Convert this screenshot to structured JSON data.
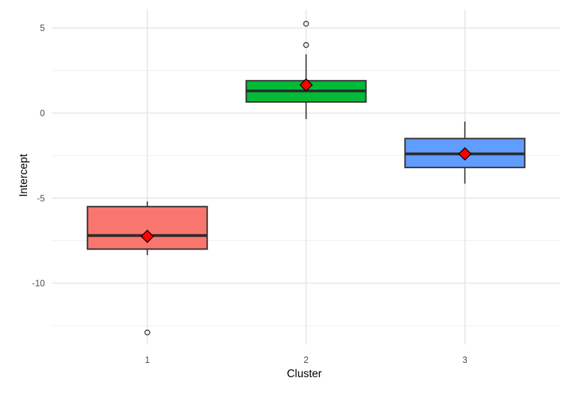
{
  "chart_data": {
    "type": "boxplot",
    "title": "",
    "xlabel": "Cluster",
    "ylabel": "Intercept",
    "categories": [
      "1",
      "2",
      "3"
    ],
    "ylim": [
      -13.6,
      6.1
    ],
    "y_major_ticks": [
      5,
      0,
      -5,
      -10
    ],
    "y_tick_labels": [
      "5",
      "0",
      "-5",
      "-10"
    ],
    "y_minor_ticks": [
      2.5,
      -2.5,
      -7.5,
      -12.5
    ],
    "legend_position": "none",
    "grid": "horizontal major+minor, vertical major at each category",
    "series": [
      {
        "cluster": "1",
        "fill": "#F8766D",
        "whisker_low": -8.35,
        "q1": -8.0,
        "median": -7.2,
        "q3": -5.5,
        "whisker_high": -5.2,
        "mean": -7.25,
        "outliers": [
          -12.9
        ]
      },
      {
        "cluster": "2",
        "fill": "#00BA38",
        "whisker_low": -0.35,
        "q1": 0.65,
        "median": 1.3,
        "q3": 1.9,
        "whisker_high": 3.45,
        "mean": 1.65,
        "outliers": [
          5.25,
          4.0
        ]
      },
      {
        "cluster": "3",
        "fill": "#619CFF",
        "whisker_low": -4.15,
        "q1": -3.2,
        "median": -2.4,
        "q3": -1.5,
        "whisker_high": -0.5,
        "mean": -2.4,
        "outliers": []
      }
    ],
    "mean_marker": {
      "shape": "diamond",
      "fill": "#FF0000",
      "border": "#000000"
    },
    "outlier_marker": {
      "shape": "open-circle",
      "color": "#333333"
    },
    "colors": {
      "background": "#FFFFFF",
      "box_border": "#333333",
      "median_line": "#2B2B2B",
      "whisker": "#333333",
      "grid_major": "#E2E2E2",
      "grid_minor": "#EFEFEF",
      "axis_text": "#4D4D4D",
      "axis_title": "#000000"
    }
  }
}
